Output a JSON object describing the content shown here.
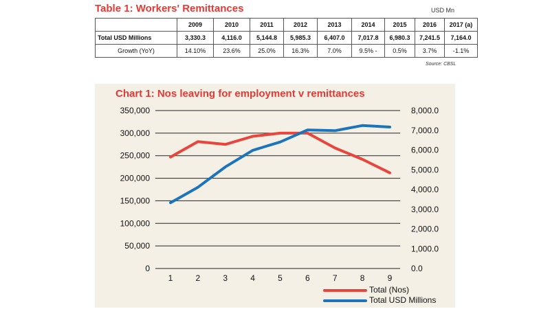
{
  "table": {
    "title": "Table 1: Workers' Remittances",
    "unit": "USD Mn",
    "source": "Source: CBSL",
    "years": [
      "2009",
      "2010",
      "2011",
      "2012",
      "2013",
      "2014",
      "2015",
      "2016",
      "2017 (a)"
    ],
    "rows": [
      {
        "label": "Total USD Millions",
        "values": [
          "3,330.3",
          "4,116.0",
          "5,144.8",
          "5,985.3",
          "6,407.0",
          "7,017.8",
          "6,980.3",
          "7,241.5",
          "7,164.0"
        ]
      },
      {
        "label": "Growth (YoY)",
        "values": [
          "14.10%",
          "23.6%",
          "25.0%",
          "16.3%",
          "7.0%",
          "9.5%  -",
          "0.5%",
          "3.7%",
          "-1.1%"
        ]
      }
    ]
  },
  "chart_data": {
    "type": "line",
    "title": "Chart 1: Nos leaving for employment v remittances",
    "x": [
      1,
      2,
      3,
      4,
      5,
      6,
      7,
      8,
      9
    ],
    "series": [
      {
        "name": "Total (Nos)",
        "axis": "left",
        "color": "#e8463c",
        "values": [
          247000,
          281000,
          275000,
          293000,
          300000,
          300000,
          267000,
          242000,
          212000
        ]
      },
      {
        "name": "Total USD Millions",
        "axis": "right",
        "color": "#1c75bc",
        "values": [
          3330.3,
          4116.0,
          5144.8,
          5985.3,
          6407.0,
          7017.8,
          6980.3,
          7241.5,
          7164.0
        ]
      }
    ],
    "left_axis": {
      "min": 0,
      "max": 350000,
      "ticks": [
        "0",
        "50,000",
        "100,000",
        "150,000",
        "200,000",
        "250,000",
        "300,000",
        "350,000"
      ]
    },
    "right_axis": {
      "min": 0,
      "max": 8000,
      "ticks": [
        "0.0",
        "1,000.0",
        "2,000.0",
        "3,000.0",
        "4,000.0",
        "5,000.0",
        "6,000.0",
        "7,000.0",
        "8,000.0"
      ]
    },
    "x_ticks": [
      "1",
      "2",
      "3",
      "4",
      "5",
      "6",
      "7",
      "8",
      "9"
    ],
    "grid": true,
    "legend_position": "bottom-right"
  }
}
